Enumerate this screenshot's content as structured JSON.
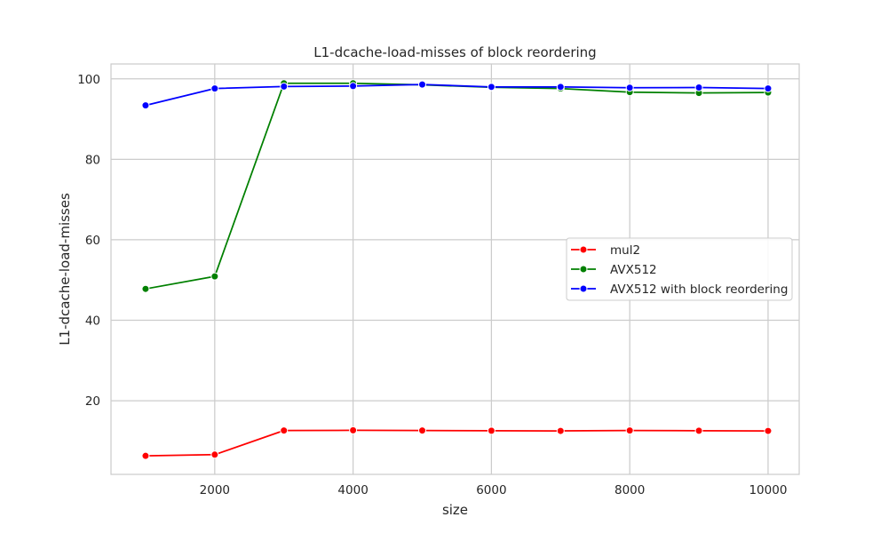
{
  "chart_data": {
    "type": "line",
    "title": "L1-dcache-load-misses of block reordering",
    "xlabel": "size",
    "ylabel": "L1-dcache-load-misses",
    "x": [
      1000,
      2000,
      3000,
      4000,
      5000,
      6000,
      7000,
      8000,
      9000,
      10000
    ],
    "xlim": [
      500,
      10450
    ],
    "ylim": [
      1.7,
      103.7
    ],
    "xticks": [
      2000,
      4000,
      6000,
      8000,
      10000
    ],
    "yticks": [
      20,
      40,
      60,
      80,
      100
    ],
    "grid": true,
    "legend_position": "center-right",
    "series": [
      {
        "name": "mul2",
        "color": "#ff0000",
        "values": [
          6.3,
          6.6,
          12.6,
          12.65,
          12.6,
          12.55,
          12.5,
          12.6,
          12.55,
          12.5
        ]
      },
      {
        "name": "AVX512",
        "color": "#008000",
        "values": [
          47.8,
          50.9,
          98.9,
          98.9,
          98.5,
          97.9,
          97.6,
          96.7,
          96.5,
          96.6
        ]
      },
      {
        "name": "AVX512 with block reordering",
        "color": "#0000ff",
        "values": [
          93.4,
          97.6,
          98.1,
          98.2,
          98.6,
          98.0,
          98.0,
          97.8,
          97.85,
          97.6
        ]
      }
    ]
  }
}
